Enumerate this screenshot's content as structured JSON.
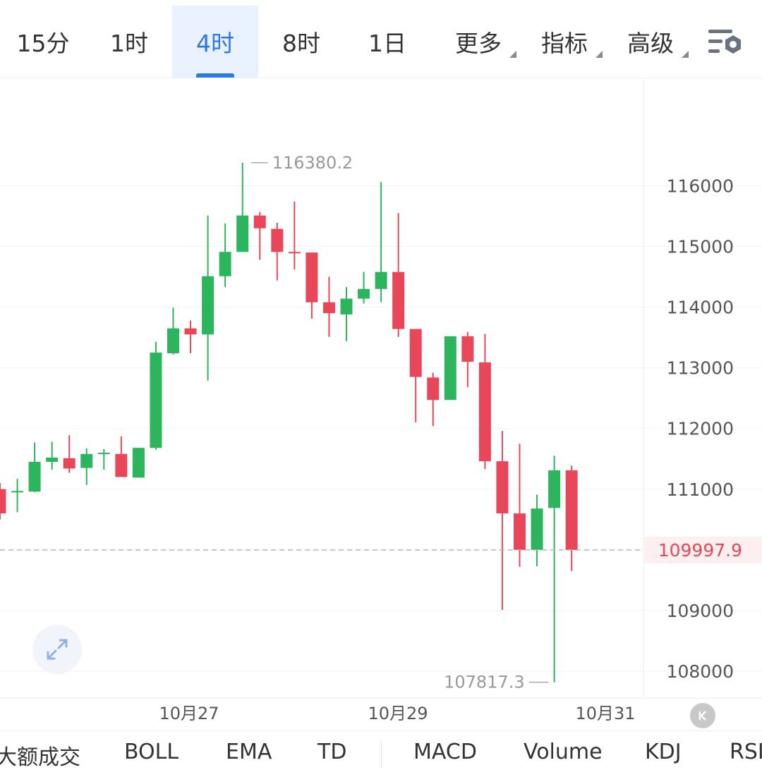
{
  "timeframes": [
    {
      "label": "15分",
      "active": false
    },
    {
      "label": "1时",
      "active": false
    },
    {
      "label": "4时",
      "active": true
    },
    {
      "label": "8时",
      "active": false
    },
    {
      "label": "1日",
      "active": false
    },
    {
      "label": "更多",
      "dropdown": true
    },
    {
      "label": "指标",
      "dropdown": true
    },
    {
      "label": "高级",
      "dropdown": true
    }
  ],
  "indicators": [
    "大额成交",
    "BOLL",
    "EMA",
    "TD",
    "MACD",
    "Volume",
    "KDJ",
    "RSI"
  ],
  "colors": {
    "up": "#2db55d",
    "down": "#e8475a",
    "accent": "#2a7ae2",
    "price_line": "#b5b5b5"
  },
  "icons": {
    "settings": "chart-settings-icon",
    "expand": "expand-icon",
    "collapse": "collapse-left-icon"
  },
  "chart_data": {
    "type": "candlestick",
    "y_ticks": [
      116000,
      115000,
      114000,
      113000,
      112000,
      111000,
      109000,
      108000
    ],
    "x_ticks": [
      "10月27",
      "10月29",
      "10月31"
    ],
    "current_price": "109997.9",
    "high_label": "116380.2",
    "low_label": "107817.3",
    "candles": [
      {
        "o": 111000,
        "c": 110600,
        "h": 111100,
        "l": 110500
      },
      {
        "o": 110960,
        "c": 110970,
        "h": 111170,
        "l": 110620
      },
      {
        "o": 110960,
        "c": 111450,
        "h": 111770,
        "l": 110950
      },
      {
        "o": 111450,
        "c": 111520,
        "h": 111780,
        "l": 111320
      },
      {
        "o": 111510,
        "c": 111340,
        "h": 111890,
        "l": 111270
      },
      {
        "o": 111350,
        "c": 111580,
        "h": 111670,
        "l": 111070
      },
      {
        "o": 111590,
        "c": 111600,
        "h": 111660,
        "l": 111320
      },
      {
        "o": 111580,
        "c": 111200,
        "h": 111870,
        "l": 111200
      },
      {
        "o": 111190,
        "c": 111680,
        "h": 111680,
        "l": 111190
      },
      {
        "o": 111680,
        "c": 113250,
        "h": 113430,
        "l": 111650
      },
      {
        "o": 113240,
        "c": 113650,
        "h": 113990,
        "l": 113220
      },
      {
        "o": 113650,
        "c": 113550,
        "h": 113780,
        "l": 113240
      },
      {
        "o": 113550,
        "c": 114510,
        "h": 115510,
        "l": 112790
      },
      {
        "o": 114510,
        "c": 114910,
        "h": 115380,
        "l": 114330
      },
      {
        "o": 114910,
        "c": 115510,
        "h": 116380,
        "l": 114910
      },
      {
        "o": 115510,
        "c": 115300,
        "h": 115570,
        "l": 114780
      },
      {
        "o": 115290,
        "c": 114910,
        "h": 115390,
        "l": 114440
      },
      {
        "o": 114910,
        "c": 114900,
        "h": 115740,
        "l": 114620
      },
      {
        "o": 114900,
        "c": 114080,
        "h": 114890,
        "l": 113810
      },
      {
        "o": 114080,
        "c": 113900,
        "h": 114500,
        "l": 113510
      },
      {
        "o": 113880,
        "c": 114140,
        "h": 114330,
        "l": 113440
      },
      {
        "o": 114140,
        "c": 114300,
        "h": 114580,
        "l": 114060
      },
      {
        "o": 114300,
        "c": 114580,
        "h": 116060,
        "l": 114080
      },
      {
        "o": 114580,
        "c": 113640,
        "h": 115550,
        "l": 113510
      },
      {
        "o": 113640,
        "c": 112850,
        "h": 113640,
        "l": 112100
      },
      {
        "o": 112840,
        "c": 112470,
        "h": 112920,
        "l": 112040
      },
      {
        "o": 112470,
        "c": 113520,
        "h": 113520,
        "l": 112470
      },
      {
        "o": 113520,
        "c": 113100,
        "h": 113590,
        "l": 112680
      },
      {
        "o": 113090,
        "c": 111460,
        "h": 113560,
        "l": 111330
      },
      {
        "o": 111460,
        "c": 110600,
        "h": 111960,
        "l": 109010
      },
      {
        "o": 110600,
        "c": 110000,
        "h": 111750,
        "l": 109720
      },
      {
        "o": 110000,
        "c": 110680,
        "h": 110910,
        "l": 109730
      },
      {
        "o": 110690,
        "c": 111310,
        "h": 111550,
        "l": 107817
      },
      {
        "o": 111310,
        "c": 109998,
        "h": 111390,
        "l": 109650
      }
    ]
  }
}
